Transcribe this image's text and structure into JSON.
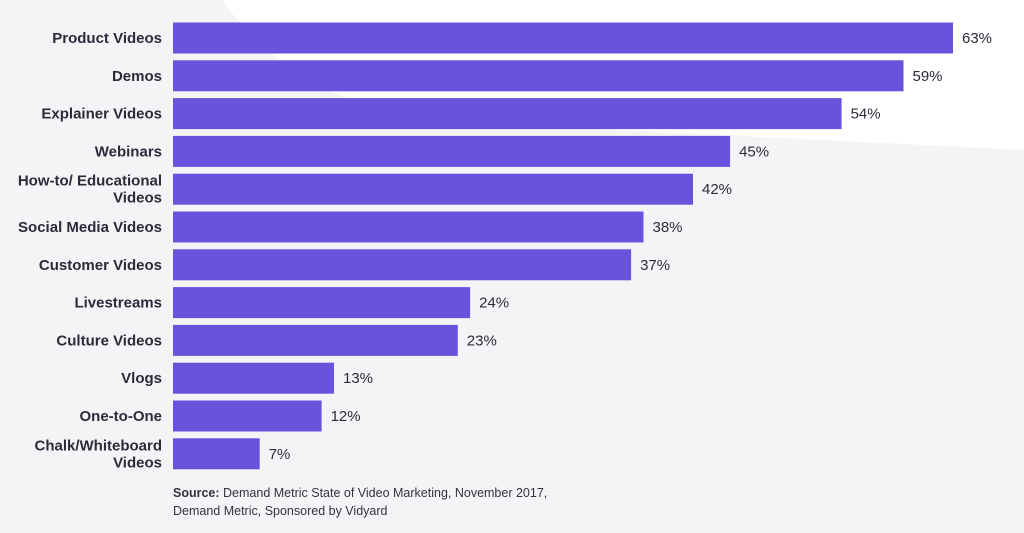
{
  "chart_data": {
    "type": "bar",
    "orientation": "horizontal",
    "categories": [
      "Product Videos",
      "Demos",
      "Explainer Videos",
      "Webinars",
      "How-to/ Educational Videos",
      "Social Media Videos",
      "Customer Videos",
      "Livestreams",
      "Culture Videos",
      "Vlogs",
      "One-to-One",
      "Chalk/Whiteboard Videos"
    ],
    "values": [
      63,
      59,
      54,
      45,
      42,
      38,
      37,
      24,
      23,
      13,
      12,
      7
    ],
    "value_labels": [
      "63%",
      "59%",
      "54%",
      "45%",
      "42%",
      "38%",
      "37%",
      "24%",
      "23%",
      "13%",
      "12%",
      "7%"
    ],
    "unit": "%",
    "xlim": [
      0,
      63
    ],
    "grid": false,
    "legend": "none",
    "title": "",
    "xlabel": "",
    "ylabel": "",
    "bar_color": "#6b52dc",
    "background_accent": "#f4f4f7"
  },
  "source": {
    "label": "Source:",
    "text": " Demand Metric State of Video Marketing, November 2017, Demand Metric, Sponsored by Vidyard"
  }
}
